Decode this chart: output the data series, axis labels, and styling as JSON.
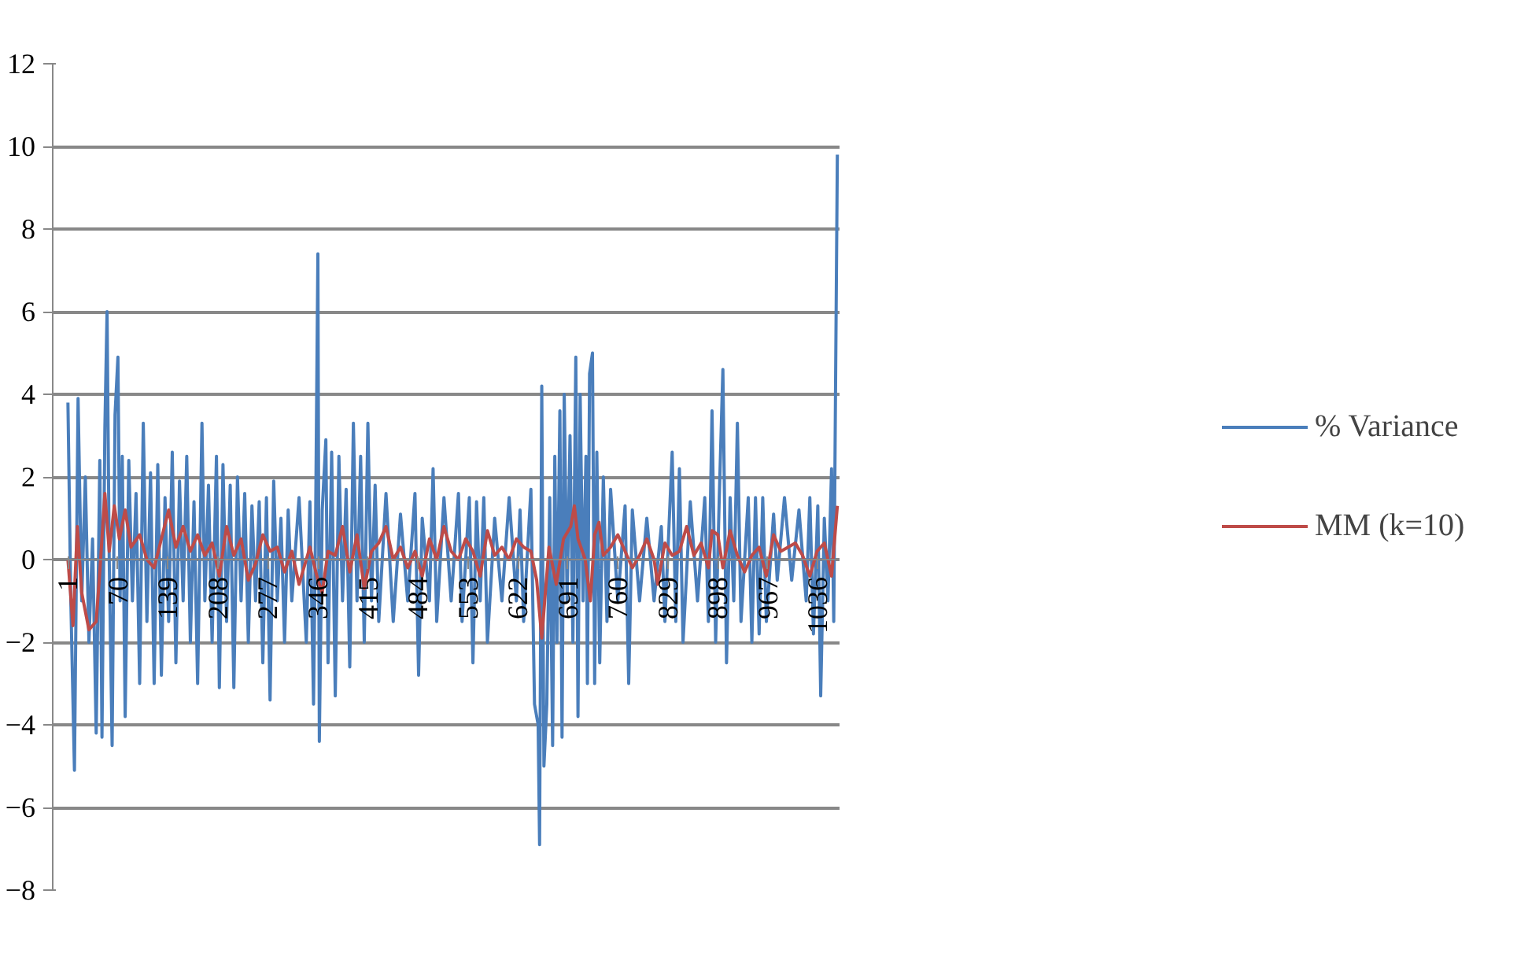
{
  "chart_data": {
    "type": "line",
    "xlim": [
      -20,
      1066
    ],
    "xticks": [
      1,
      70,
      139,
      208,
      277,
      346,
      415,
      484,
      553,
      622,
      691,
      760,
      829,
      898,
      967,
      1036
    ],
    "ylim": [
      -8,
      12
    ],
    "yticks": [
      -8,
      -6,
      -4,
      -2,
      0,
      2,
      4,
      6,
      8,
      10,
      12
    ],
    "grid": "y",
    "legend": "right",
    "marker": "none",
    "line_style": "solid",
    "series": [
      {
        "name": "% Variance",
        "color": "#4a7ebb",
        "x": [
          1,
          5,
          10,
          15,
          20,
          25,
          30,
          35,
          40,
          45,
          48,
          52,
          55,
          58,
          62,
          66,
          70,
          73,
          76,
          80,
          85,
          90,
          95,
          100,
          105,
          110,
          115,
          120,
          125,
          130,
          135,
          140,
          145,
          150,
          155,
          160,
          165,
          170,
          175,
          180,
          186,
          190,
          195,
          200,
          206,
          210,
          215,
          220,
          225,
          230,
          235,
          240,
          245,
          250,
          255,
          260,
          265,
          270,
          275,
          280,
          285,
          290,
          295,
          300,
          305,
          310,
          320,
          330,
          335,
          340,
          343,
          346,
          348,
          352,
          357,
          360,
          365,
          370,
          375,
          380,
          385,
          390,
          395,
          400,
          405,
          410,
          415,
          420,
          425,
          430,
          440,
          450,
          460,
          470,
          480,
          485,
          490,
          500,
          505,
          510,
          520,
          530,
          540,
          545,
          555,
          560,
          565,
          570,
          575,
          580,
          590,
          600,
          610,
          620,
          625,
          630,
          640,
          645,
          650,
          652,
          655,
          658,
          662,
          666,
          670,
          673,
          676,
          680,
          683,
          686,
          690,
          694,
          698,
          702,
          705,
          708,
          712,
          716,
          718,
          721,
          725,
          728,
          731,
          735,
          740,
          745,
          750,
          760,
          770,
          775,
          780,
          790,
          800,
          810,
          820,
          825,
          835,
          840,
          845,
          850,
          860,
          870,
          880,
          885,
          890,
          895,
          900,
          905,
          910,
          915,
          920,
          925,
          930,
          940,
          945,
          950,
          955,
          960,
          965,
          975,
          980,
          990,
          1000,
          1010,
          1020,
          1025,
          1030,
          1036,
          1040,
          1045,
          1050,
          1055,
          1058,
          1063
        ],
        "values": [
          3.8,
          -1,
          -5.1,
          3.9,
          -1,
          2,
          -2,
          0.5,
          -4.2,
          2.4,
          -4.3,
          3.2,
          6.0,
          0,
          -4.5,
          3.5,
          4.9,
          -1,
          2.5,
          -3.8,
          2.4,
          -1,
          1.6,
          -3,
          3.3,
          -1.5,
          2.1,
          -3,
          2.3,
          -2.8,
          1.5,
          -1.5,
          2.6,
          -2.5,
          1.9,
          -1,
          2.5,
          -2,
          1.4,
          -3,
          3.3,
          -1,
          1.8,
          -2,
          2.5,
          -3.1,
          2.3,
          -1.5,
          1.8,
          -3.1,
          2.0,
          -1,
          1.6,
          -2,
          1.3,
          -1,
          1.4,
          -2.5,
          1.5,
          -3.4,
          1.9,
          -1,
          1.0,
          -2,
          1.2,
          -1,
          1.5,
          -2,
          1.4,
          -3.5,
          1.2,
          7.4,
          -4.4,
          1.2,
          2.9,
          -2.5,
          2.6,
          -3.3,
          2.5,
          -1,
          1.7,
          -2.6,
          3.3,
          -1,
          2.5,
          -2,
          3.3,
          -1,
          1.8,
          -1.5,
          1.6,
          -1.5,
          1.1,
          -1,
          1.6,
          -2.8,
          1.0,
          -1,
          2.2,
          -1.5,
          1.5,
          -1,
          1.6,
          -1.5,
          1.5,
          -2.5,
          1.4,
          -1,
          1.5,
          -2,
          1.0,
          -1,
          1.5,
          -1,
          1.2,
          -1.5,
          1.7,
          -3.5,
          -4,
          -6.9,
          4.2,
          -5,
          -3.5,
          1.5,
          -4.5,
          2.5,
          -2,
          3.6,
          -4.3,
          4.0,
          -1,
          3.0,
          -2,
          4.9,
          -3.8,
          4.0,
          -1,
          2.5,
          -3,
          4.5,
          5.0,
          -3,
          2.6,
          -2.5,
          2.0,
          -1.5,
          1.7,
          -1,
          1.3,
          -3,
          1.2,
          -1,
          1.0,
          -1,
          0.8,
          -1.5,
          2.6,
          -1.5,
          2.2,
          -2,
          1.4,
          -1,
          1.5,
          -1.5,
          3.6,
          -2,
          1.5,
          4.6,
          -2.5,
          1.5,
          -1,
          3.3,
          -1.5,
          1.5,
          -2,
          1.5,
          -1.8,
          1.5,
          -1.5,
          1.1,
          -0.5,
          1.5,
          -0.5,
          1.2,
          -1,
          1.5,
          -1.8,
          1.3,
          -3.3,
          1.0,
          -1,
          2.2,
          -1.5,
          9.8
        ]
      },
      {
        "name": "MM (k=10)",
        "color": "#be4b48",
        "x": [
          1,
          8,
          14,
          20,
          30,
          40,
          45,
          52,
          58,
          65,
          72,
          80,
          88,
          100,
          110,
          120,
          130,
          140,
          150,
          160,
          170,
          180,
          190,
          200,
          210,
          220,
          230,
          240,
          250,
          260,
          270,
          280,
          290,
          300,
          310,
          320,
          335,
          346,
          352,
          360,
          370,
          380,
          390,
          400,
          410,
          420,
          430,
          440,
          450,
          460,
          470,
          480,
          490,
          500,
          510,
          520,
          530,
          540,
          550,
          560,
          570,
          580,
          590,
          600,
          610,
          620,
          630,
          640,
          648,
          655,
          665,
          675,
          685,
          695,
          700,
          705,
          715,
          722,
          728,
          734,
          740,
          750,
          760,
          770,
          780,
          790,
          800,
          810,
          815,
          825,
          835,
          845,
          855,
          865,
          875,
          885,
          890,
          898,
          905,
          915,
          925,
          935,
          945,
          955,
          965,
          975,
          985,
          995,
          1005,
          1015,
          1025,
          1035,
          1045,
          1055,
          1063
        ],
        "values": [
          0,
          -1.6,
          0.8,
          -0.8,
          -1.7,
          -1.5,
          -0.3,
          1.6,
          0.2,
          1.3,
          0.5,
          1.2,
          0.3,
          0.6,
          0.0,
          -0.2,
          0.5,
          1.2,
          0.3,
          0.8,
          0.2,
          0.6,
          0.1,
          0.4,
          -0.4,
          0.8,
          0.1,
          0.5,
          -0.5,
          -0.1,
          0.6,
          0.2,
          0.3,
          -0.3,
          0.2,
          -0.6,
          0.3,
          -0.5,
          -0.8,
          0.2,
          0.1,
          0.8,
          -0.3,
          0.6,
          -0.7,
          0.2,
          0.4,
          0.8,
          0.0,
          0.3,
          -0.2,
          0.2,
          -0.4,
          0.5,
          0.0,
          0.8,
          0.2,
          0.0,
          0.5,
          0.2,
          -0.4,
          0.7,
          0.1,
          0.3,
          0.0,
          0.5,
          0.3,
          0.2,
          -0.5,
          -1.9,
          0.3,
          -0.6,
          0.5,
          0.8,
          1.3,
          0.5,
          0.0,
          -1.0,
          0.6,
          0.9,
          0.1,
          0.3,
          0.6,
          0.2,
          -0.2,
          0.1,
          0.5,
          0.0,
          -0.6,
          0.4,
          0.1,
          0.2,
          0.8,
          0.1,
          0.4,
          -0.2,
          0.7,
          0.6,
          -0.2,
          0.7,
          0.1,
          -0.3,
          0.1,
          0.3,
          -0.4,
          0.6,
          0.2,
          0.3,
          0.4,
          0.1,
          -0.4,
          0.2,
          0.4,
          -0.4,
          1.3
        ]
      }
    ]
  }
}
